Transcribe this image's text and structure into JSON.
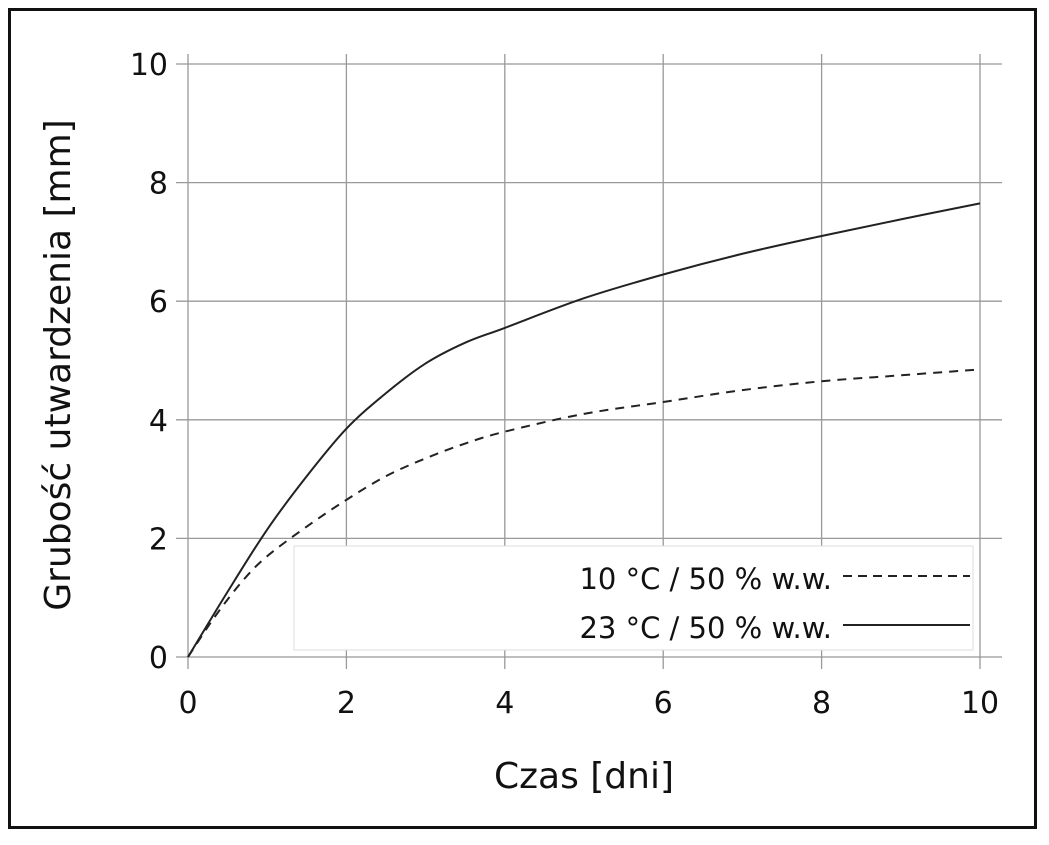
{
  "chart_data": {
    "type": "line",
    "title": "",
    "xlabel": "Czas [dni]",
    "ylabel": "Grubość utwardzenia [mm]",
    "xlim": [
      0,
      10
    ],
    "ylim": [
      0,
      10
    ],
    "xticks": [
      0,
      2,
      4,
      6,
      8,
      10
    ],
    "yticks": [
      0,
      2,
      4,
      6,
      8,
      10
    ],
    "grid": true,
    "legend_position": "bottom-right",
    "series": [
      {
        "name": "10 °C / 50 % w.w.",
        "style": "dashed",
        "x": [
          0,
          0.35,
          0.7,
          1,
          1.5,
          2,
          2.5,
          3,
          3.5,
          4,
          5,
          6,
          7,
          8,
          9,
          10
        ],
        "y": [
          0,
          0.7,
          1.3,
          1.7,
          2.2,
          2.65,
          3.05,
          3.35,
          3.6,
          3.8,
          4.1,
          4.3,
          4.5,
          4.65,
          4.75,
          4.85
        ]
      },
      {
        "name": "23 °C / 50 % w.w.",
        "style": "solid",
        "x": [
          0,
          0.5,
          1,
          1.5,
          2,
          2.5,
          3,
          3.5,
          4,
          5,
          6,
          7,
          8,
          9,
          10
        ],
        "y": [
          0,
          1.1,
          2.15,
          3.05,
          3.85,
          4.45,
          4.95,
          5.3,
          5.55,
          6.05,
          6.45,
          6.8,
          7.1,
          7.38,
          7.65
        ]
      }
    ]
  }
}
